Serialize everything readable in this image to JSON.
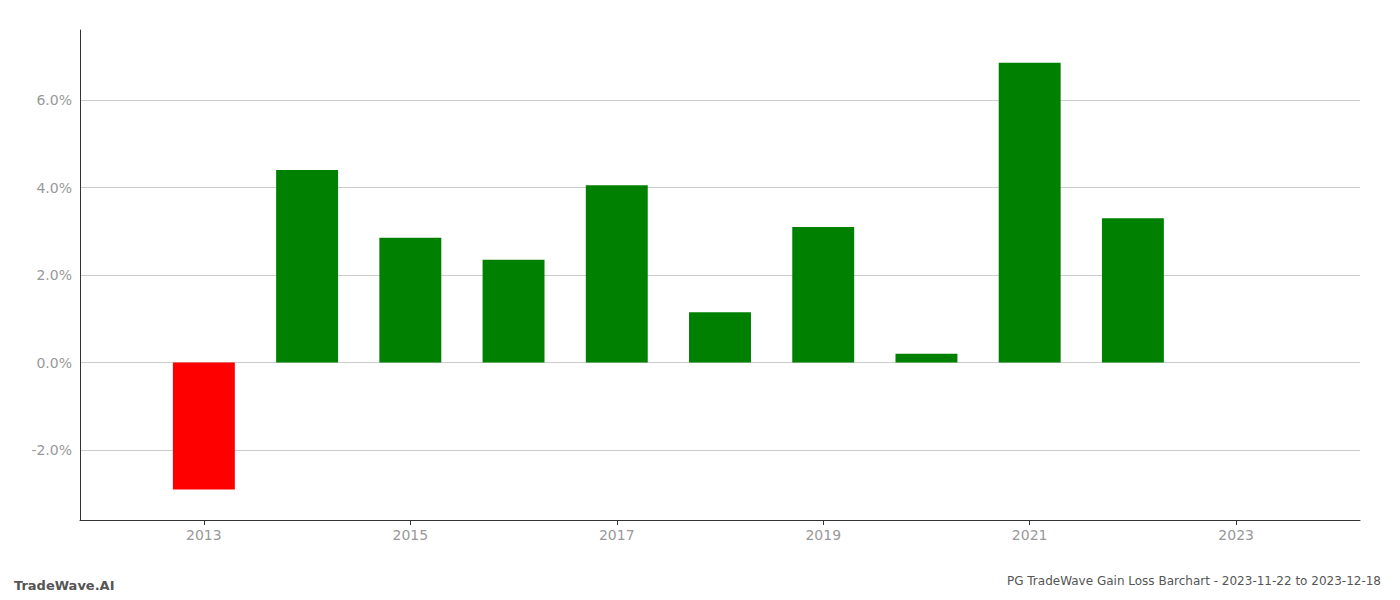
{
  "chart_data": {
    "type": "bar",
    "title": "PG TradeWave Gain Loss Barchart - 2023-11-22 to 2023-12-18",
    "annotations": [
      "TradeWave.AI"
    ],
    "x": [
      2013,
      2014,
      2015,
      2016,
      2017,
      2018,
      2019,
      2020,
      2021,
      2022
    ],
    "values": [
      -0.029,
      0.044,
      0.0285,
      0.0235,
      0.0405,
      0.0115,
      0.031,
      0.002,
      0.0685,
      0.033
    ],
    "colors": [
      "#ff0000",
      "#008000",
      "#008000",
      "#008000",
      "#008000",
      "#008000",
      "#008000",
      "#008000",
      "#008000",
      "#008000"
    ],
    "xlim": [
      2011.8,
      2024.2
    ],
    "xticks": [
      2013,
      2015,
      2017,
      2019,
      2021,
      2023
    ],
    "ylim": [
      -0.036,
      0.076
    ],
    "yticks": [
      {
        "value": -0.02,
        "label": "-2.0%"
      },
      {
        "value": 0.0,
        "label": "0.0%"
      },
      {
        "value": 0.02,
        "label": "2.0%"
      },
      {
        "value": 0.04,
        "label": "4.0%"
      },
      {
        "value": 0.06,
        "label": "6.0%"
      }
    ],
    "grid": true
  }
}
